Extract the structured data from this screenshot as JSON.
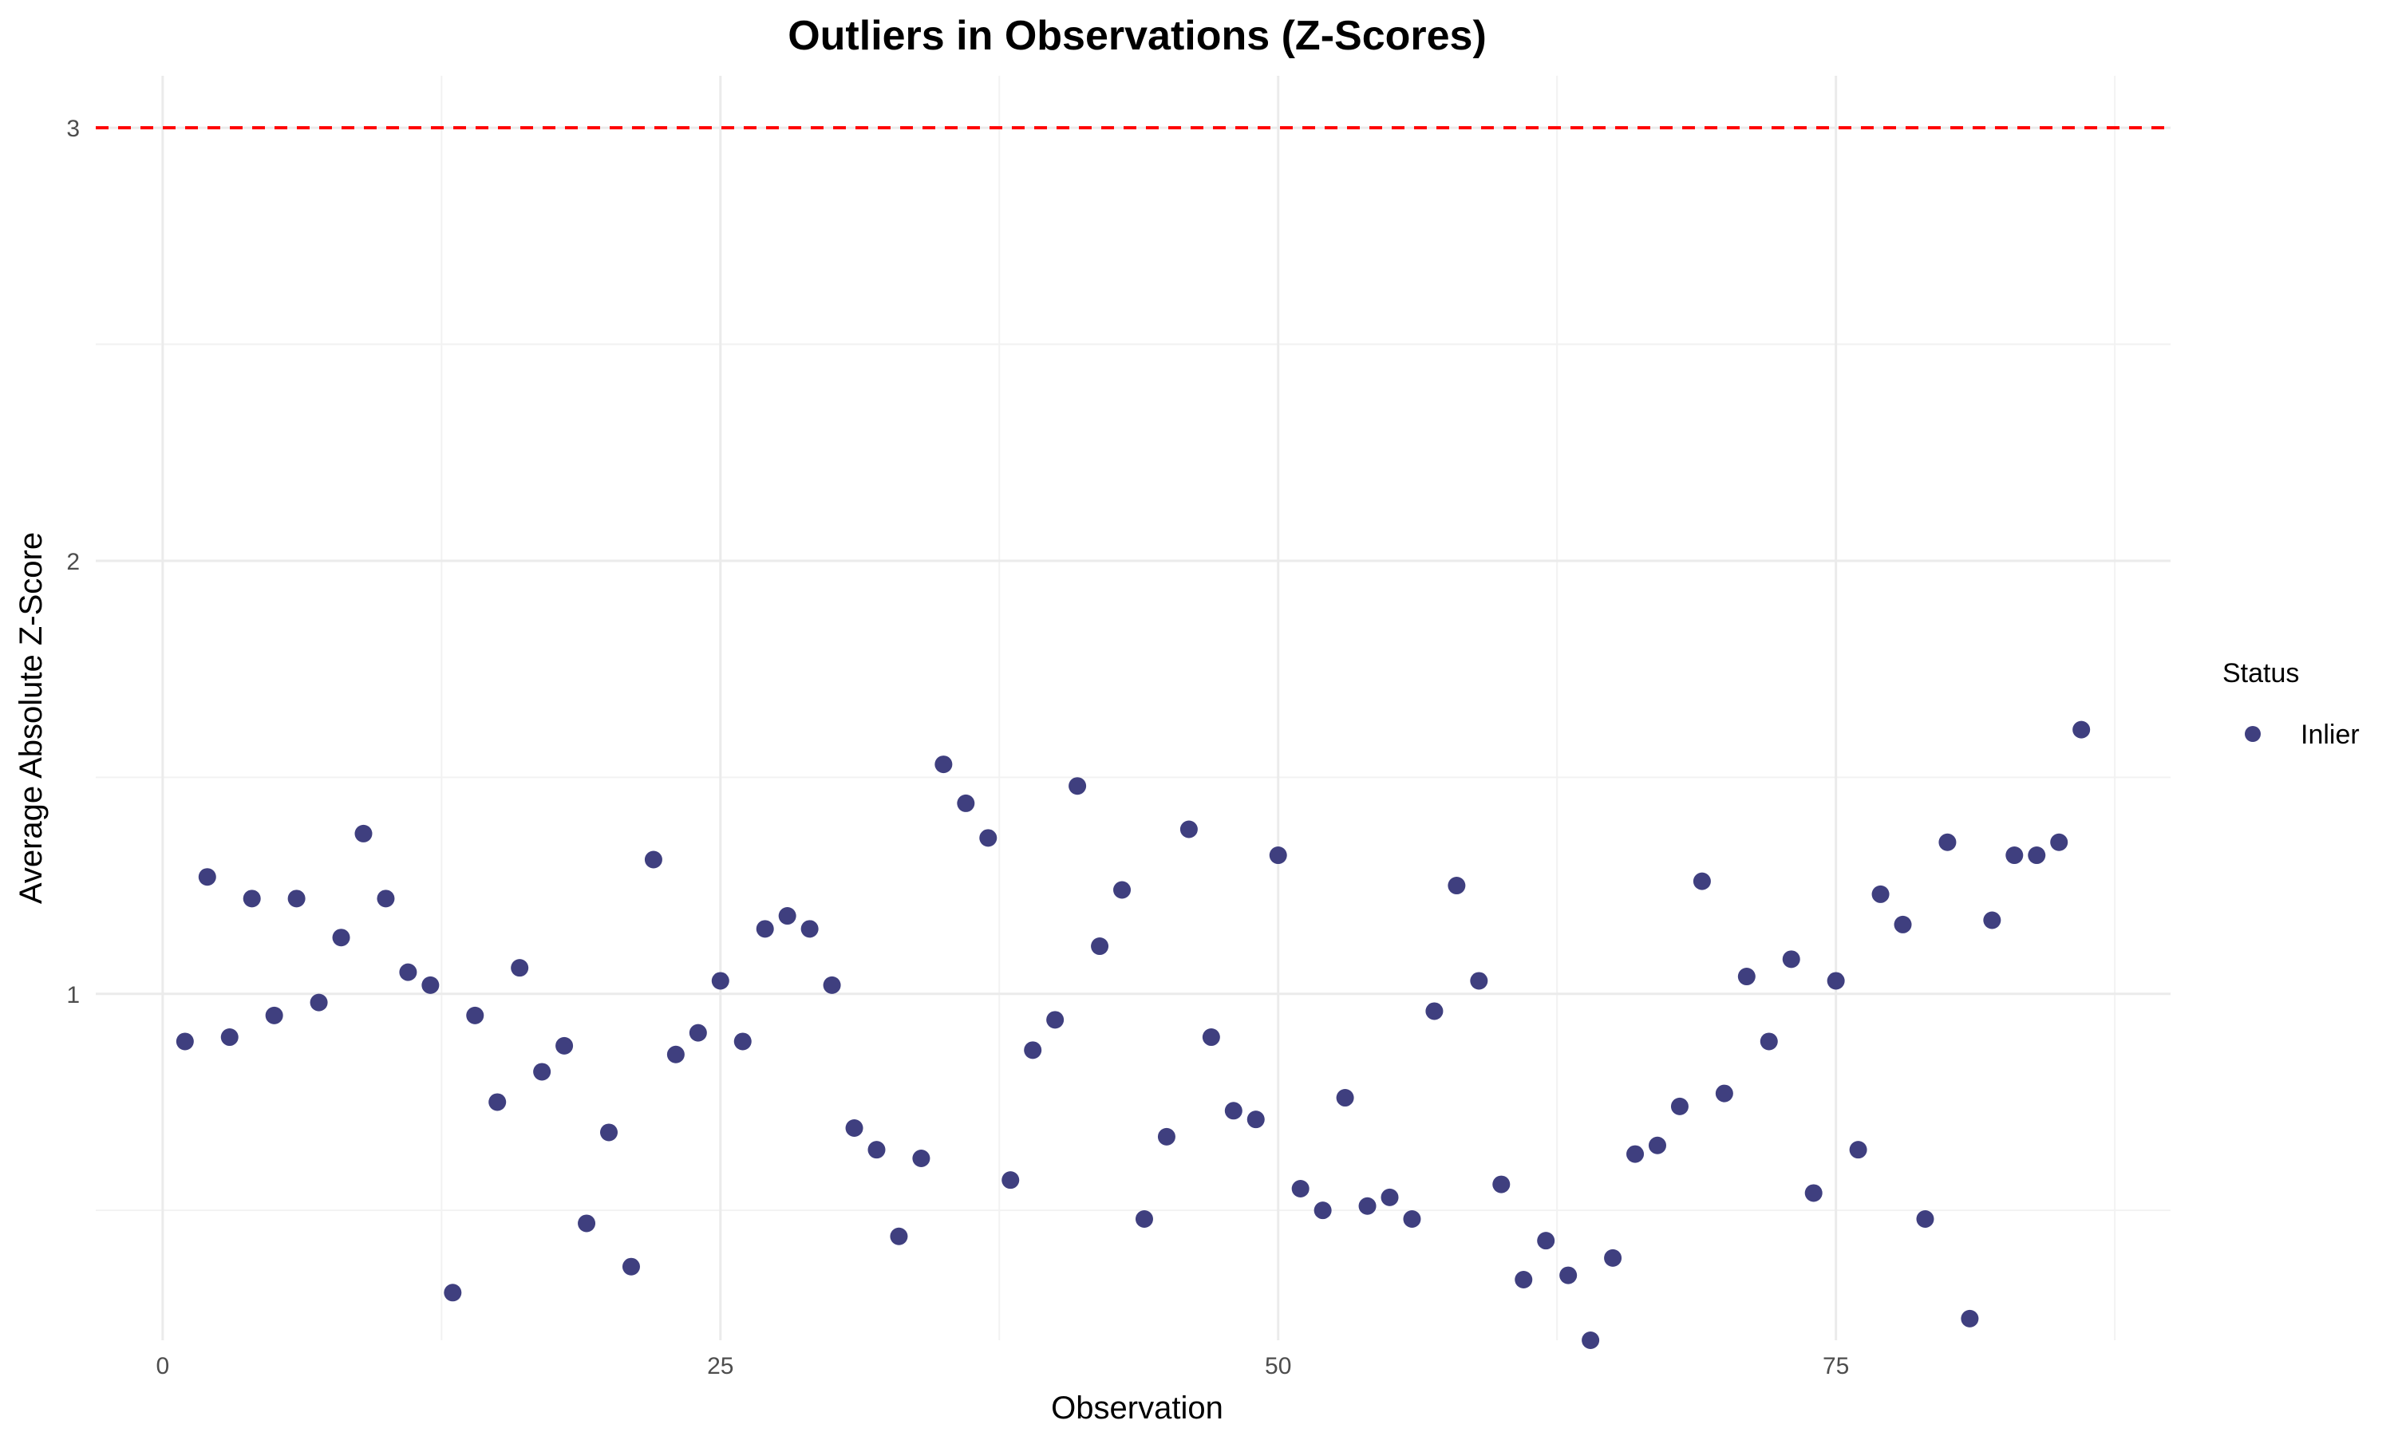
{
  "chart_data": {
    "type": "scatter",
    "title": "Outliers in Observations (Z-Scores)",
    "xlabel": "Observation",
    "ylabel": "Average Absolute Z-Score",
    "xlim": [
      -3,
      90
    ],
    "ylim": [
      0.2,
      3.12
    ],
    "x_ticks": [
      0,
      25,
      50,
      75
    ],
    "x_tick_labels": [
      "0",
      "25",
      "50",
      "75"
    ],
    "y_ticks": [
      1,
      2,
      3
    ],
    "y_tick_labels": [
      "1",
      "2",
      "3"
    ],
    "x_minor_ticks": [
      12.5,
      37.5,
      62.5,
      87.5
    ],
    "y_minor_ticks": [
      0.5,
      1.5,
      2.5
    ],
    "grid": true,
    "threshold": {
      "value": 3,
      "color": "#ff0000",
      "style": "dashed"
    },
    "legend": {
      "title": "Status",
      "position": "right",
      "entries": [
        {
          "label": "Inlier",
          "color": "#3f3f7f"
        }
      ]
    },
    "series": [
      {
        "name": "Inlier",
        "color": "#3f3f7f",
        "x": [
          1,
          2,
          3,
          4,
          5,
          6,
          7,
          8,
          9,
          10,
          11,
          12,
          13,
          14,
          15,
          16,
          17,
          18,
          19,
          20,
          21,
          22,
          23,
          24,
          25,
          26,
          27,
          28,
          29,
          30,
          31,
          32,
          33,
          34,
          35,
          36,
          37,
          38,
          39,
          40,
          41,
          42,
          43,
          44,
          45,
          46,
          47,
          48,
          49,
          50,
          51,
          52,
          53,
          54,
          55,
          56,
          57,
          58,
          59,
          60,
          61,
          62,
          63,
          64,
          65,
          66,
          67,
          68,
          69,
          70,
          71,
          72,
          73,
          74,
          75,
          76,
          77,
          78,
          79,
          80,
          81,
          82,
          83,
          84,
          85,
          86
        ],
        "y": [
          0.89,
          1.27,
          0.9,
          1.22,
          0.95,
          1.22,
          0.98,
          1.13,
          1.37,
          1.22,
          1.05,
          1.02,
          0.31,
          0.95,
          0.75,
          1.06,
          0.82,
          0.88,
          0.47,
          0.68,
          0.37,
          1.31,
          0.86,
          0.91,
          1.03,
          0.89,
          1.15,
          1.18,
          1.15,
          1.02,
          0.69,
          0.64,
          0.44,
          0.62,
          1.53,
          1.44,
          1.36,
          0.57,
          0.87,
          0.94,
          1.48,
          1.11,
          1.24,
          0.48,
          0.67,
          1.38,
          0.9,
          0.73,
          0.71,
          1.32,
          0.55,
          0.5,
          0.76,
          0.51,
          0.53,
          0.48,
          0.96,
          1.25,
          1.03,
          0.56,
          0.34,
          0.43,
          0.35,
          0.2,
          0.39,
          0.63,
          0.65,
          0.74,
          1.26,
          0.77,
          1.04,
          0.89,
          1.08,
          0.54,
          1.03,
          0.64,
          1.23,
          1.16,
          0.48,
          1.35,
          0.25,
          1.17,
          1.32,
          1.32,
          1.35,
          1.61
        ]
      }
    ]
  }
}
